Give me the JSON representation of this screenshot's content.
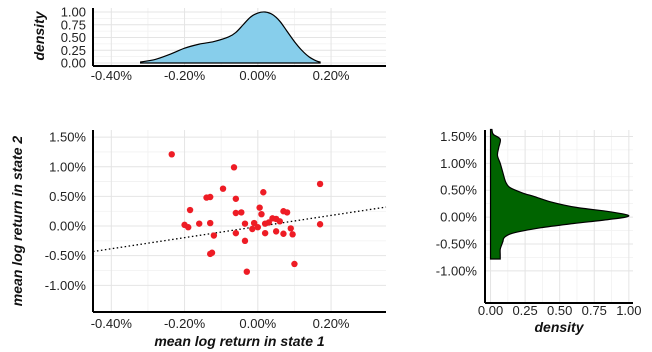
{
  "colors": {
    "top_density_fill": "#87ceeb",
    "right_density_fill": "#006400",
    "scatter_point": "#ee1c25",
    "axis": "#000000",
    "grid": "#e4e4e4"
  },
  "chart_data": [
    {
      "panel": "top-marginal-density",
      "type": "area",
      "xlabel": "",
      "ylabel": "density",
      "xlim": [
        -0.0045,
        0.0035
      ],
      "ylim": [
        0,
        1.0
      ],
      "x_ticks": [
        -0.004,
        -0.002,
        0.0,
        0.002
      ],
      "x_tick_labels": [
        "-0.40%",
        "-0.20%",
        "0.00%",
        "0.20%"
      ],
      "y_ticks": [
        0.0,
        0.25,
        0.5,
        0.75,
        1.0
      ],
      "y_tick_labels": [
        "0.00",
        "0.25",
        "0.50",
        "0.75",
        "1.00"
      ],
      "grid": true,
      "x": [
        -0.0032,
        -0.0028,
        -0.0024,
        -0.002,
        -0.0016,
        -0.0012,
        -0.0008,
        -0.0006,
        -0.0004,
        -0.0002,
        0.0,
        0.0002,
        0.0004,
        0.0006,
        0.0008,
        0.001,
        0.0012,
        0.0014,
        0.0016,
        0.0017
      ],
      "y": [
        0.02,
        0.07,
        0.17,
        0.29,
        0.37,
        0.42,
        0.51,
        0.6,
        0.75,
        0.9,
        0.98,
        1.0,
        0.95,
        0.82,
        0.62,
        0.42,
        0.25,
        0.12,
        0.04,
        0.02
      ]
    },
    {
      "panel": "main-scatter",
      "type": "scatter",
      "xlabel": "mean log return in state 1",
      "ylabel": "mean log return in state 2",
      "xlim": [
        -0.0045,
        0.0035
      ],
      "ylim": [
        -0.0145,
        0.0162
      ],
      "x_ticks": [
        -0.004,
        -0.002,
        0.0,
        0.002
      ],
      "x_tick_labels": [
        "-0.40%",
        "-0.20%",
        "0.00%",
        "0.20%"
      ],
      "y_ticks": [
        -0.01,
        -0.005,
        0.0,
        0.005,
        0.01,
        0.015
      ],
      "y_tick_labels": [
        "-1.00%",
        "-0.50%",
        "0.00%",
        "0.50%",
        "1.00%",
        "1.50%"
      ],
      "grid": true,
      "reference_line": {
        "style": "dotted",
        "x": [
          -0.0045,
          0.0035
        ],
        "y": [
          -0.0043,
          0.0032
        ]
      },
      "points": [
        {
          "x": -0.00235,
          "y": 0.0121
        },
        {
          "x": -0.00065,
          "y": 0.0099
        },
        {
          "x": 0.0017,
          "y": 0.0071
        },
        {
          "x": -0.00095,
          "y": 0.0063
        },
        {
          "x": 0.00015,
          "y": 0.0057
        },
        {
          "x": -0.0013,
          "y": 0.0049
        },
        {
          "x": -0.0014,
          "y": 0.0048
        },
        {
          "x": -0.0006,
          "y": 0.0046
        },
        {
          "x": -0.00185,
          "y": 0.0027
        },
        {
          "x": -0.0006,
          "y": 0.0022
        },
        {
          "x": 5e-05,
          "y": 0.0031
        },
        {
          "x": -0.00045,
          "y": 0.0023
        },
        {
          "x": 0.0001,
          "y": 0.002
        },
        {
          "x": 0.0007,
          "y": 0.0025
        },
        {
          "x": 0.0008,
          "y": 0.0023
        },
        {
          "x": -0.002,
          "y": 0.0002
        },
        {
          "x": -0.0016,
          "y": 0.0004
        },
        {
          "x": -0.0013,
          "y": 0.0005
        },
        {
          "x": -0.0019,
          "y": -0.0002
        },
        {
          "x": -0.00035,
          "y": 0.0004
        },
        {
          "x": -0.0001,
          "y": 0.0005
        },
        {
          "x": 0.0002,
          "y": 0.0004
        },
        {
          "x": 0.0005,
          "y": 0.0012
        },
        {
          "x": 0.0006,
          "y": 0.0008
        },
        {
          "x": 0.0003,
          "y": 0.0006
        },
        {
          "x": 0.0004,
          "y": 0.0013
        },
        {
          "x": 0.0017,
          "y": 0.0003
        },
        {
          "x": -0.00015,
          "y": -0.0005
        },
        {
          "x": 0.0,
          "y": -0.0002
        },
        {
          "x": 0.0009,
          "y": -0.0004
        },
        {
          "x": 0.0007,
          "y": -0.0013
        },
        {
          "x": 0.00095,
          "y": -0.0014
        },
        {
          "x": -0.00035,
          "y": -0.0025
        },
        {
          "x": 0.0002,
          "y": -0.0012
        },
        {
          "x": -0.0006,
          "y": -0.0012
        },
        {
          "x": -0.0012,
          "y": -0.0016
        },
        {
          "x": -0.00125,
          "y": -0.0045
        },
        {
          "x": -0.0013,
          "y": -0.0047
        },
        {
          "x": -0.0003,
          "y": -0.0077
        },
        {
          "x": 0.001,
          "y": -0.0064
        },
        {
          "x": 0.0005,
          "y": -0.0009
        }
      ]
    },
    {
      "panel": "right-marginal-density",
      "type": "area",
      "xlabel": "density",
      "ylabel": "",
      "xlim": [
        -0.04,
        1.03
      ],
      "ylim": [
        -0.0145,
        0.0162
      ],
      "x_ticks": [
        0.0,
        0.25,
        0.5,
        0.75,
        1.0
      ],
      "x_tick_labels": [
        "0.00",
        "0.25",
        "0.50",
        "0.75",
        "1.00"
      ],
      "y_ticks": [
        -0.01,
        -0.005,
        0.0,
        0.005,
        0.01,
        0.015
      ],
      "y_tick_labels": [
        "-1.00%",
        "-0.50%",
        "0.00%",
        "0.50%",
        "1.00%",
        "1.50%"
      ],
      "grid": true,
      "y": [
        0.0163,
        0.0154,
        0.0145,
        0.013,
        0.0115,
        0.01,
        0.0082,
        0.0065,
        0.0055,
        0.0045,
        0.0038,
        0.0028,
        0.0018,
        0.001,
        0.0002,
        -0.0005,
        -0.0012,
        -0.002,
        -0.003,
        -0.0038,
        -0.0045,
        -0.0052,
        -0.006,
        -0.007,
        -0.0078
      ],
      "x": [
        0.01,
        0.02,
        0.07,
        0.06,
        0.05,
        0.07,
        0.09,
        0.11,
        0.14,
        0.23,
        0.32,
        0.44,
        0.62,
        0.86,
        1.0,
        0.84,
        0.6,
        0.36,
        0.16,
        0.1,
        0.09,
        0.08,
        0.07,
        0.07,
        0.07
      ]
    }
  ]
}
